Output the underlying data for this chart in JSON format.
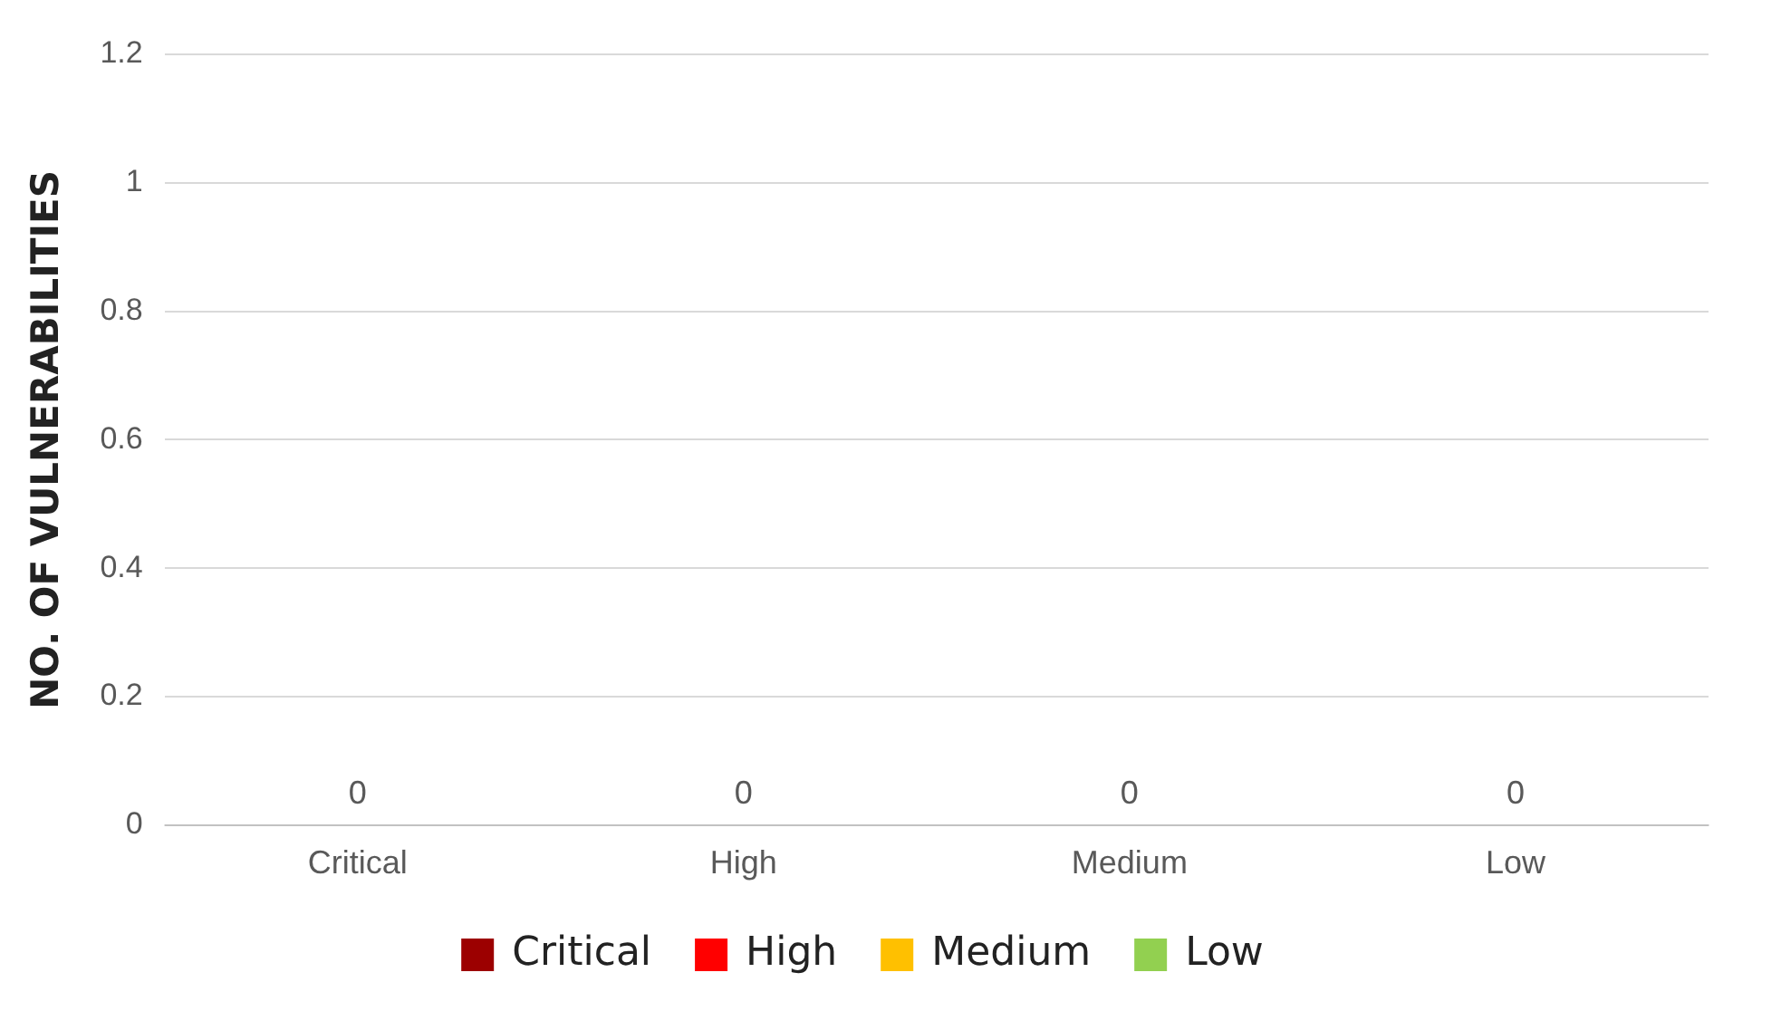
{
  "chart_data": {
    "type": "bar",
    "ylabel": "NO. OF VULNERABILITIES",
    "categories": [
      "Critical",
      "High",
      "Medium",
      "Low"
    ],
    "series": [
      {
        "name": "Critical",
        "color": "#9c0000",
        "values": [
          0,
          null,
          null,
          null
        ]
      },
      {
        "name": "High",
        "color": "#ff0000",
        "values": [
          null,
          0,
          null,
          null
        ]
      },
      {
        "name": "Medium",
        "color": "#ffc000",
        "values": [
          null,
          null,
          0,
          null
        ]
      },
      {
        "name": "Low",
        "color": "#92d050",
        "values": [
          null,
          null,
          null,
          0
        ]
      }
    ],
    "ylim": [
      0,
      1.2
    ],
    "yticks": [
      0,
      0.2,
      0.4,
      0.6,
      0.8,
      1,
      1.2
    ],
    "grid": "y",
    "legend": "bottom",
    "data_labels": true
  }
}
